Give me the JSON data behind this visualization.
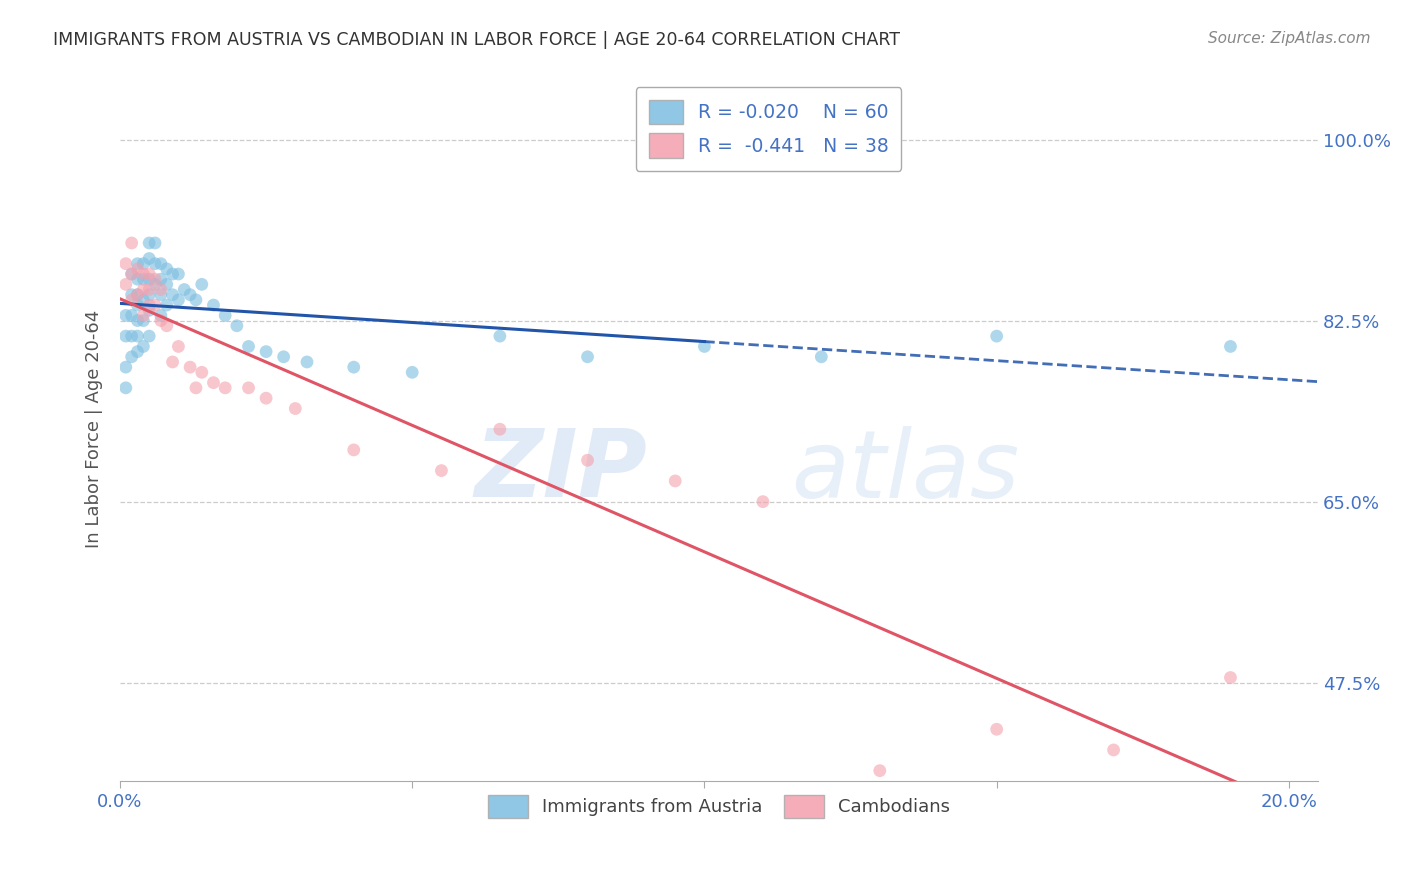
{
  "title": "IMMIGRANTS FROM AUSTRIA VS CAMBODIAN IN LABOR FORCE | AGE 20-64 CORRELATION CHART",
  "source": "Source: ZipAtlas.com",
  "ylabel": "In Labor Force | Age 20-64",
  "ytick_labels": [
    "47.5%",
    "65.0%",
    "82.5%",
    "100.0%"
  ],
  "ytick_values": [
    0.475,
    0.65,
    0.825,
    1.0
  ],
  "xtick_values": [
    0.0,
    0.05,
    0.1,
    0.15,
    0.2
  ],
  "xlim": [
    0.0,
    0.205
  ],
  "ylim": [
    0.38,
    1.06
  ],
  "legend_r1": "R = -0.020",
  "legend_n1": "N = 60",
  "legend_r2": "R =  -0.441",
  "legend_n2": "N = 38",
  "austria_color": "#7BBDE0",
  "cambodian_color": "#F4A0AD",
  "austria_line_color": "#2255AA",
  "cambodian_line_color": "#E05565",
  "marker_size": 85,
  "marker_alpha": 0.6,
  "austria_x": [
    0.001,
    0.001,
    0.001,
    0.001,
    0.002,
    0.002,
    0.002,
    0.002,
    0.002,
    0.003,
    0.003,
    0.003,
    0.003,
    0.003,
    0.003,
    0.003,
    0.004,
    0.004,
    0.004,
    0.004,
    0.004,
    0.005,
    0.005,
    0.005,
    0.005,
    0.005,
    0.005,
    0.006,
    0.006,
    0.006,
    0.007,
    0.007,
    0.007,
    0.007,
    0.008,
    0.008,
    0.008,
    0.009,
    0.009,
    0.01,
    0.01,
    0.011,
    0.012,
    0.013,
    0.014,
    0.016,
    0.018,
    0.02,
    0.022,
    0.025,
    0.028,
    0.032,
    0.04,
    0.05,
    0.065,
    0.08,
    0.1,
    0.12,
    0.15,
    0.19
  ],
  "austria_y": [
    0.83,
    0.81,
    0.78,
    0.76,
    0.87,
    0.85,
    0.83,
    0.81,
    0.79,
    0.88,
    0.865,
    0.85,
    0.84,
    0.825,
    0.81,
    0.795,
    0.88,
    0.865,
    0.845,
    0.825,
    0.8,
    0.9,
    0.885,
    0.865,
    0.85,
    0.835,
    0.81,
    0.9,
    0.88,
    0.86,
    0.88,
    0.865,
    0.85,
    0.83,
    0.875,
    0.86,
    0.84,
    0.87,
    0.85,
    0.87,
    0.845,
    0.855,
    0.85,
    0.845,
    0.86,
    0.84,
    0.83,
    0.82,
    0.8,
    0.795,
    0.79,
    0.785,
    0.78,
    0.775,
    0.81,
    0.79,
    0.8,
    0.79,
    0.81,
    0.8
  ],
  "cambodian_x": [
    0.001,
    0.001,
    0.002,
    0.002,
    0.002,
    0.003,
    0.003,
    0.004,
    0.004,
    0.004,
    0.005,
    0.005,
    0.005,
    0.006,
    0.006,
    0.007,
    0.007,
    0.008,
    0.009,
    0.01,
    0.012,
    0.013,
    0.014,
    0.016,
    0.018,
    0.022,
    0.025,
    0.03,
    0.04,
    0.055,
    0.065,
    0.08,
    0.095,
    0.11,
    0.13,
    0.15,
    0.17,
    0.19
  ],
  "cambodian_y": [
    0.88,
    0.86,
    0.9,
    0.87,
    0.845,
    0.875,
    0.85,
    0.87,
    0.855,
    0.83,
    0.87,
    0.855,
    0.84,
    0.865,
    0.84,
    0.855,
    0.825,
    0.82,
    0.785,
    0.8,
    0.78,
    0.76,
    0.775,
    0.765,
    0.76,
    0.76,
    0.75,
    0.74,
    0.7,
    0.68,
    0.72,
    0.69,
    0.67,
    0.65,
    0.39,
    0.43,
    0.41,
    0.48
  ],
  "watermark_zip": "ZIP",
  "watermark_atlas": "atlas",
  "background_color": "#ffffff",
  "grid_color": "#cccccc",
  "tick_label_color": "#4472c4",
  "title_color": "#333333",
  "axis_label_color": "#555555"
}
